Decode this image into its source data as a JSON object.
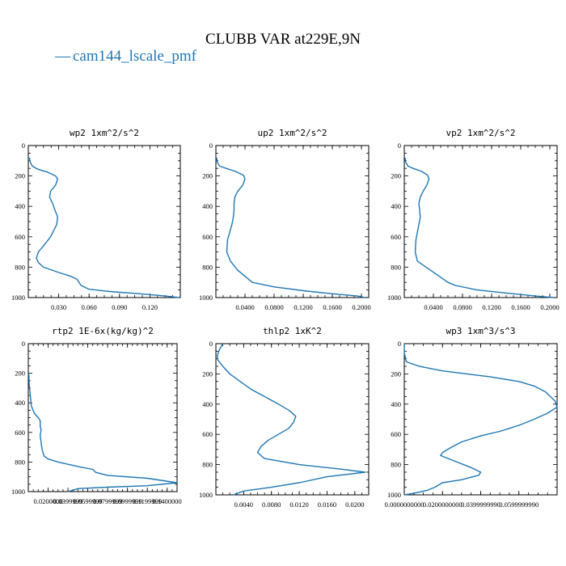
{
  "figure": {
    "title": "CLUBB VAR at229E,9N",
    "legend_label": "cam144_lscale_pmf",
    "legend_marker": "—",
    "line_color": "#1f77b4"
  },
  "chart_data": [
    {
      "type": "line",
      "title": "wp2  1xm^2/s^2",
      "xlim": [
        0.0,
        0.15
      ],
      "ylim": [
        1000,
        0
      ],
      "xticks": [
        0.03,
        0.06,
        0.09,
        0.12
      ],
      "xtick_labels": [
        "0.030",
        "0.060",
        "0.090",
        "0.120"
      ],
      "yticks": [
        0,
        200,
        400,
        600,
        800,
        1000
      ],
      "ytick_labels": [
        "0",
        "200",
        "400",
        "600",
        "800",
        "1000"
      ],
      "series": [
        {
          "x": [
            0.001,
            0.002,
            0.004,
            0.009,
            0.019,
            0.027,
            0.029,
            0.027,
            0.022,
            0.021,
            0.024,
            0.026,
            0.029,
            0.028,
            0.025,
            0.022,
            0.015,
            0.01,
            0.008,
            0.01,
            0.015,
            0.03,
            0.042,
            0.048,
            0.052,
            0.06,
            0.08,
            0.11,
            0.135,
            0.149
          ],
          "y": [
            80,
            110,
            135,
            155,
            175,
            200,
            220,
            260,
            300,
            340,
            380,
            420,
            470,
            520,
            560,
            600,
            660,
            700,
            740,
            770,
            800,
            835,
            860,
            880,
            920,
            945,
            960,
            975,
            990,
            1000
          ]
        }
      ]
    },
    {
      "type": "line",
      "title": "up2  1xm^2/s^2",
      "xlim": [
        0.0,
        0.21
      ],
      "ylim": [
        1000,
        0
      ],
      "xticks": [
        0.04,
        0.08,
        0.12,
        0.16,
        0.2
      ],
      "xtick_labels": [
        "0.0400",
        "0.0800",
        "0.1200",
        "0.1600",
        "0.2000"
      ],
      "yticks": [
        0,
        200,
        400,
        600,
        800,
        1000
      ],
      "ytick_labels": [
        "0",
        "200",
        "400",
        "600",
        "800",
        "1000"
      ],
      "series": [
        {
          "x": [
            0.001,
            0.002,
            0.005,
            0.014,
            0.027,
            0.038,
            0.04,
            0.037,
            0.03,
            0.026,
            0.025,
            0.025,
            0.024,
            0.022,
            0.019,
            0.016,
            0.015,
            0.02,
            0.03,
            0.04,
            0.05,
            0.08,
            0.12,
            0.16,
            0.195,
            0.205
          ],
          "y": [
            80,
            110,
            135,
            150,
            170,
            195,
            220,
            260,
            300,
            340,
            380,
            420,
            470,
            520,
            570,
            620,
            700,
            760,
            820,
            860,
            900,
            930,
            955,
            975,
            990,
            1000
          ]
        }
      ]
    },
    {
      "type": "line",
      "title": "vp2  1xm^2/s^2",
      "xlim": [
        0.0,
        0.21
      ],
      "ylim": [
        1000,
        0
      ],
      "xticks": [
        0.04,
        0.08,
        0.12,
        0.16,
        0.2
      ],
      "xtick_labels": [
        "0.0400",
        "0.0800",
        "0.1200",
        "0.1600",
        "0.2000"
      ],
      "yticks": [
        0,
        200,
        400,
        600,
        800,
        1000
      ],
      "ytick_labels": [
        "0",
        "200",
        "400",
        "600",
        "800",
        "1000"
      ],
      "series": [
        {
          "x": [
            0.001,
            0.002,
            0.005,
            0.012,
            0.024,
            0.032,
            0.034,
            0.031,
            0.026,
            0.022,
            0.02,
            0.021,
            0.022,
            0.02,
            0.018,
            0.016,
            0.015,
            0.018,
            0.03,
            0.045,
            0.06,
            0.07,
            0.1,
            0.14,
            0.18,
            0.205
          ],
          "y": [
            80,
            110,
            135,
            150,
            170,
            195,
            220,
            260,
            300,
            340,
            380,
            420,
            470,
            520,
            570,
            620,
            700,
            760,
            800,
            850,
            900,
            920,
            950,
            970,
            990,
            1000
          ]
        }
      ]
    },
    {
      "type": "line",
      "title": "rtp2  1E-6x(kg/kg)^2",
      "xlim": [
        0.0,
        0.15
      ],
      "ylim": [
        1000,
        0
      ],
      "xticks": [
        0.02,
        0.04,
        0.06,
        0.08,
        0.1,
        0.12,
        0.14
      ],
      "xtick_labels": [
        "0.0200000",
        "0.0399999",
        "0.0599999",
        "0.0799999",
        "0.0999999",
        "0.1199999",
        "0.1400000"
      ],
      "yticks": [
        0,
        200,
        400,
        600,
        800,
        1000
      ],
      "ytick_labels": [
        "0",
        "200",
        "400",
        "600",
        "800",
        "1000"
      ],
      "series": [
        {
          "x": [
            0.0005,
            0.001,
            0.002,
            0.003,
            0.006,
            0.01,
            0.012,
            0.012,
            0.013,
            0.012,
            0.013,
            0.014,
            0.016,
            0.02,
            0.03,
            0.05,
            0.065,
            0.068,
            0.08,
            0.12,
            0.15,
            0.12,
            0.08,
            0.05,
            0.04
          ],
          "y": [
            200,
            280,
            350,
            420,
            470,
            500,
            520,
            560,
            580,
            620,
            670,
            720,
            760,
            780,
            800,
            830,
            850,
            870,
            890,
            910,
            940,
            960,
            970,
            980,
            1000
          ]
        }
      ]
    },
    {
      "type": "line",
      "title": "thlp2  1xK^2",
      "xlim": [
        0.0,
        0.022
      ],
      "ylim": [
        1000,
        0
      ],
      "xticks": [
        0.004,
        0.008,
        0.012,
        0.016,
        0.02
      ],
      "xtick_labels": [
        "0.0040",
        "0.0080",
        "0.0120",
        "0.0160",
        "0.0200"
      ],
      "yticks": [
        0,
        200,
        400,
        600,
        800,
        1000
      ],
      "ytick_labels": [
        "0",
        "200",
        "400",
        "600",
        "800",
        "1000"
      ],
      "series": [
        {
          "x": [
            0.001,
            0.0005,
            0.0002,
            0.0003,
            0.001,
            0.002,
            0.0035,
            0.005,
            0.007,
            0.009,
            0.0105,
            0.0115,
            0.0112,
            0.0105,
            0.009,
            0.0075,
            0.0065,
            0.006,
            0.007,
            0.012,
            0.018,
            0.0215,
            0.016,
            0.012,
            0.008,
            0.004,
            0.0025
          ],
          "y": [
            0,
            40,
            80,
            110,
            150,
            200,
            250,
            300,
            350,
            400,
            440,
            480,
            520,
            560,
            600,
            640,
            680,
            720,
            760,
            800,
            830,
            850,
            880,
            920,
            950,
            975,
            1000
          ]
        }
      ]
    },
    {
      "type": "line",
      "title": "wp3  1xm^3/s^3",
      "xlim": [
        0.0,
        0.08
      ],
      "ylim": [
        1000,
        0
      ],
      "xticks": [
        0.0,
        0.02,
        0.04,
        0.06
      ],
      "xtick_labels": [
        "0.0000000000",
        "0.0200000000",
        "0.0399999990",
        "0.0599999990"
      ],
      "yticks": [
        0,
        200,
        400,
        600,
        800,
        1000
      ],
      "ytick_labels": [
        "0",
        "200",
        "400",
        "600",
        "800",
        "1000"
      ],
      "series": [
        {
          "x": [
            0.0,
            0.0,
            0.001,
            0.008,
            0.02,
            0.045,
            0.06,
            0.068,
            0.074,
            0.079,
            0.08,
            0.075,
            0.068,
            0.06,
            0.05,
            0.04,
            0.03,
            0.024,
            0.02,
            0.019,
            0.025,
            0.035,
            0.04,
            0.039,
            0.03,
            0.02,
            0.016,
            0.012,
            0.005,
            0.0
          ],
          "y": [
            0,
            60,
            120,
            150,
            180,
            220,
            250,
            280,
            320,
            380,
            420,
            460,
            500,
            540,
            580,
            610,
            650,
            690,
            720,
            740,
            770,
            820,
            850,
            870,
            900,
            920,
            950,
            970,
            990,
            1000
          ]
        }
      ]
    }
  ]
}
